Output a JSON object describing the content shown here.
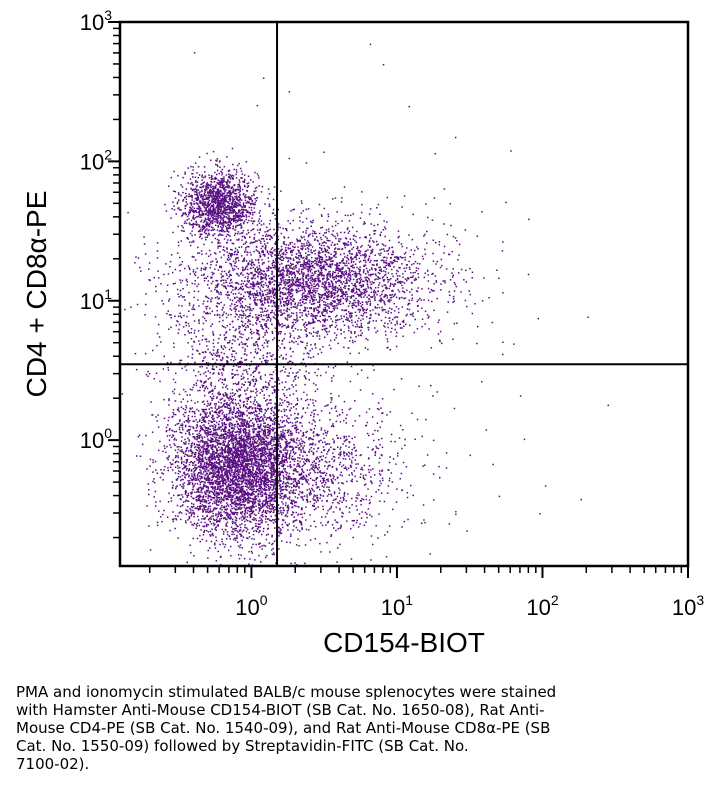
{
  "chart_data": {
    "type": "scatter",
    "subtype": "flow-cytometry-dot-plot",
    "xlabel": "CD154-BIOT",
    "ylabel": "CD4 + CD8α-PE",
    "x_scale": "log",
    "y_scale": "log",
    "xlim": [
      0.125,
      1000
    ],
    "ylim": [
      0.125,
      1000
    ],
    "x_tick_labels": [
      {
        "base": "10",
        "exp": "0",
        "value": 1
      },
      {
        "base": "10",
        "exp": "1",
        "value": 10
      },
      {
        "base": "10",
        "exp": "2",
        "value": 100
      },
      {
        "base": "10",
        "exp": "3",
        "value": 1000
      }
    ],
    "y_tick_labels": [
      {
        "base": "10",
        "exp": "0",
        "value": 1
      },
      {
        "base": "10",
        "exp": "1",
        "value": 10
      },
      {
        "base": "10",
        "exp": "2",
        "value": 100
      },
      {
        "base": "10",
        "exp": "3",
        "value": 1000
      }
    ],
    "gates": {
      "x": 1.5,
      "y": 3.5
    },
    "grid": false,
    "dot_color": "#5a0f82",
    "populations": [
      {
        "x_center": 0.6,
        "y_center": 50,
        "x_spread_decades": 0.13,
        "y_spread_decades": 0.12,
        "events": 1400
      },
      {
        "x_center": 2.5,
        "y_center": 14,
        "x_spread_decades": 0.42,
        "y_spread_decades": 0.2,
        "events": 3400
      },
      {
        "x_center": 0.75,
        "y_center": 0.65,
        "x_spread_decades": 0.22,
        "y_spread_decades": 0.25,
        "events": 4200
      },
      {
        "x_center": 2.2,
        "y_center": 0.6,
        "x_spread_decades": 0.35,
        "y_spread_decades": 0.25,
        "events": 1300
      },
      {
        "x_center": 0.9,
        "y_center": 3.2,
        "x_spread_decades": 0.3,
        "y_spread_decades": 0.28,
        "events": 800
      },
      {
        "x_center": 3,
        "y_center": 6,
        "x_spread_decades": 0.8,
        "y_spread_decades": 0.8,
        "events": 160
      }
    ],
    "outliers": [
      {
        "x": 6.5,
        "y": 700
      },
      {
        "x": 8,
        "y": 500
      },
      {
        "x": 1.2,
        "y": 400
      },
      {
        "x": 1.8,
        "y": 320
      },
      {
        "x": 12,
        "y": 250
      },
      {
        "x": 25,
        "y": 150
      },
      {
        "x": 60,
        "y": 120
      },
      {
        "x": 35,
        "y": 5
      },
      {
        "x": 70,
        "y": 2.1
      },
      {
        "x": 95,
        "y": 0.3
      },
      {
        "x": 280,
        "y": 1.8
      },
      {
        "x": 50,
        "y": 0.4
      }
    ]
  },
  "caption": "PMA and ionomycin stimulated BALB/c mouse splenocytes were stained\nwith Hamster Anti-Mouse CD154-BIOT (SB Cat. No. 1650-08), Rat Anti-\nMouse CD4-PE (SB Cat. No. 1540-09), and Rat Anti-Mouse CD8α-PE (SB\nCat. No. 1550-09) followed by Streptavidin-FITC (SB Cat. No.\n7100-02)."
}
